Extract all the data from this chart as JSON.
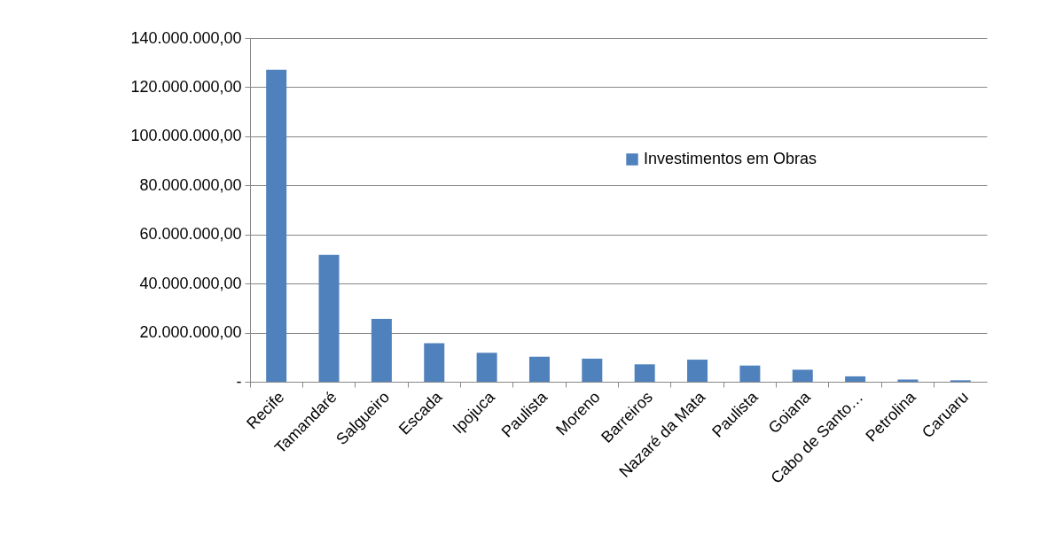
{
  "chart_data": {
    "type": "bar",
    "categories": [
      "Recife",
      "Tamandaré",
      "Salgueiro",
      "Escada",
      "Ipojuca",
      "Paulista",
      "Moreno",
      "Barreiros",
      "Nazaré da Mata",
      "Paulista",
      "Goiana",
      "Cabo de Santo…",
      "Petrolina",
      "Caruaru"
    ],
    "series": [
      {
        "name": "Investimentos em Obras",
        "color": "#4f81bd",
        "values": [
          127100000,
          51700000,
          25600000,
          15700000,
          11800000,
          10200000,
          9400000,
          7100000,
          9000000,
          6600000,
          4900000,
          2200000,
          900000,
          600000
        ]
      }
    ],
    "ylim": [
      0,
      140000000
    ],
    "yticks": [
      {
        "value": 0,
        "label": "-"
      },
      {
        "value": 20000000,
        "label": "20.000.000,00"
      },
      {
        "value": 40000000,
        "label": "40.000.000,00"
      },
      {
        "value": 60000000,
        "label": "60.000.000,00"
      },
      {
        "value": 80000000,
        "label": "80.000.000,00"
      },
      {
        "value": 100000000,
        "label": "100.000.000,00"
      },
      {
        "value": 120000000,
        "label": "120.000.000,00"
      },
      {
        "value": 140000000,
        "label": "140.000.000,00"
      }
    ],
    "grid": "y",
    "legend": "top right"
  }
}
